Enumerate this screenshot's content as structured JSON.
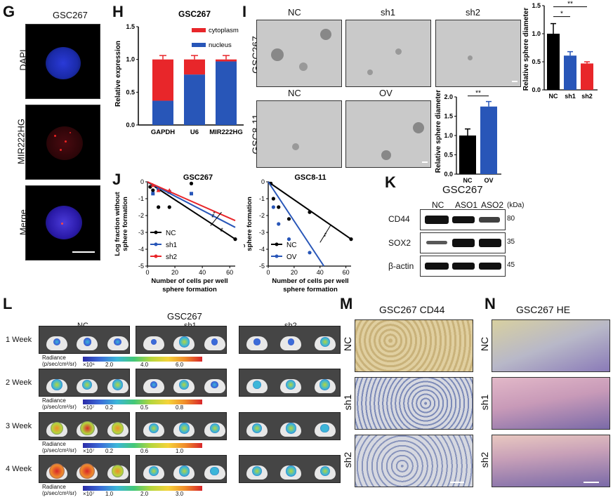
{
  "panels": {
    "G": {
      "label": "G",
      "title": "GSC267",
      "rows": [
        "DAPI",
        "MIR222HG",
        "Merge"
      ]
    },
    "H": {
      "label": "H",
      "chart_data": {
        "type": "bar",
        "title": "GSC267",
        "ylabel": "Relative expression",
        "categories": [
          "GAPDH",
          "U6",
          "MIR222HG"
        ],
        "series": [
          {
            "name": "nucleus",
            "values": [
              0.37,
              0.77,
              0.97
            ]
          },
          {
            "name": "cytoplasm",
            "values": [
              0.63,
              0.23,
              0.03
            ]
          }
        ],
        "yticks": [
          "0.0",
          "0.5",
          "1.0",
          "1.5"
        ],
        "ylim": [
          0,
          1.5
        ],
        "colors": {
          "cytoplasm": "#e8262a",
          "nucleus": "#2856b8"
        },
        "legend": "top-right"
      }
    },
    "I": {
      "label": "I",
      "row1_label": "GSC267",
      "row2_label": "GSC8-11",
      "row1_cols": [
        "NC",
        "sh1",
        "sh2"
      ],
      "row2_cols": [
        "NC",
        "OV"
      ],
      "chart_data": [
        {
          "type": "bar",
          "ylabel": "Relative sphere diameter",
          "categories": [
            "NC",
            "sh1",
            "sh2"
          ],
          "values": [
            1.0,
            0.61,
            0.47
          ],
          "errors": [
            0.18,
            0.07,
            0.03
          ],
          "yticks": [
            "0.0",
            "0.5",
            "1.0",
            "1.5"
          ],
          "ylim": [
            0,
            1.5
          ],
          "colors": [
            "#000000",
            "#2856b8",
            "#e8262a"
          ],
          "sig": [
            "*",
            "**"
          ]
        },
        {
          "type": "bar",
          "ylabel": "Relative sphere diameter",
          "categories": [
            "NC",
            "OV"
          ],
          "values": [
            1.0,
            1.75
          ],
          "errors": [
            0.17,
            0.13
          ],
          "yticks": [
            "0.0",
            "0.5",
            "1.0",
            "1.5",
            "2.0"
          ],
          "ylim": [
            0,
            2.0
          ],
          "colors": [
            "#000000",
            "#2856b8"
          ],
          "sig": [
            "**"
          ]
        }
      ]
    },
    "J": {
      "label": "J",
      "chart_data": [
        {
          "type": "line",
          "title": "GSC267",
          "ylabel": "Log fraction without sphere formation",
          "xlabel": "Number of cells per well sphere formation",
          "xticks": [
            "0",
            "20",
            "40",
            "60"
          ],
          "yticks": [
            "0",
            "-1",
            "-2",
            "-3",
            "-4",
            "-5"
          ],
          "xlim": [
            0,
            64
          ],
          "ylim": [
            -5,
            0
          ],
          "series": [
            {
              "name": "NC",
              "color": "#000000",
              "line": [
                [
                  0,
                  0
                ],
                [
                  64,
                  -3.4
                ]
              ],
              "points": [
                [
                  2,
                  -0.3
                ],
                [
                  4,
                  -0.5
                ],
                [
                  8,
                  -1.5
                ],
                [
                  16,
                  -1.5
                ],
                [
                  32,
                  -0.1
                ],
                [
                  64,
                  -3.4
                ]
              ]
            },
            {
              "name": "sh1",
              "color": "#2856b8",
              "line": [
                [
                  0,
                  0
                ],
                [
                  64,
                  -2.7
                ]
              ],
              "points": [
                [
                  4,
                  -0.7
                ],
                [
                  8,
                  -0.4
                ],
                [
                  16,
                  -0.6
                ],
                [
                  32,
                  -0.7
                ]
              ]
            },
            {
              "name": "sh2",
              "color": "#e8262a",
              "line": [
                [
                  0,
                  0
                ],
                [
                  64,
                  -2.3
                ]
              ],
              "points": [
                [
                  4,
                  -0.2
                ],
                [
                  8,
                  -0.5
                ],
                [
                  16,
                  -0.5
                ]
              ]
            }
          ],
          "annotations": [
            "***",
            "**"
          ],
          "legend": "bottom-left"
        },
        {
          "type": "line",
          "title": "GSC8-11",
          "ylabel": "Log fraction without sphere formation",
          "xlabel": "Number of cells per well sphere formation",
          "xticks": [
            "0",
            "20",
            "40",
            "60"
          ],
          "yticks": [
            "0",
            "-1",
            "-2",
            "-3",
            "-4",
            "-5"
          ],
          "xlim": [
            0,
            64
          ],
          "ylim": [
            -5,
            0
          ],
          "series": [
            {
              "name": "NC",
              "color": "#000000",
              "line": [
                [
                  0,
                  0
                ],
                [
                  64,
                  -3.4
                ]
              ],
              "points": [
                [
                  2,
                  -0.1
                ],
                [
                  4,
                  -1.0
                ],
                [
                  8,
                  -1.5
                ],
                [
                  16,
                  -2.2
                ],
                [
                  32,
                  -1.8
                ],
                [
                  64,
                  -3.4
                ]
              ]
            },
            {
              "name": "OV",
              "color": "#2856b8",
              "line": [
                [
                  0,
                  0
                ],
                [
                  43,
                  -5.0
                ]
              ],
              "points": [
                [
                  4,
                  -1.5
                ],
                [
                  8,
                  -2.5
                ],
                [
                  16,
                  -3.4
                ],
                [
                  32,
                  -4.2
                ]
              ]
            }
          ],
          "annotations": [
            "**"
          ],
          "legend": "bottom-left"
        }
      ]
    },
    "K": {
      "label": "K",
      "title": "GSC267",
      "cols": [
        "NC",
        "ASO1",
        "ASO2"
      ],
      "unit": "(kDa)",
      "rows": [
        {
          "name": "CD44",
          "kda": "80"
        },
        {
          "name": "SOX2",
          "kda": "35"
        },
        {
          "name": "β-actin",
          "kda": "45"
        }
      ]
    },
    "L": {
      "label": "L",
      "title": "GSC267",
      "cols": [
        "NC",
        "sh1",
        "sh2"
      ],
      "weeks": [
        "1 Week",
        "2 Week",
        "3 Week",
        "4 Week"
      ],
      "radiance_label": "Radiance",
      "radiance_unit": "(p/sec/cm²/sr)",
      "scales": [
        {
          "mult": "×10⁶",
          "ticks": [
            "2.0",
            "4.0",
            "6.0"
          ]
        },
        {
          "mult": "×10⁷",
          "ticks": [
            "0.2",
            "0.5",
            "0.8"
          ]
        },
        {
          "mult": "×10⁷",
          "ticks": [
            "0.2",
            "0.6",
            "1.0"
          ]
        },
        {
          "mult": "×10⁷",
          "ticks": [
            "1.0",
            "2.0",
            "3.0"
          ]
        }
      ]
    },
    "M": {
      "label": "M",
      "title": "GSC267 CD44",
      "rows": [
        "NC",
        "sh1",
        "sh2"
      ]
    },
    "N": {
      "label": "N",
      "title": "GSC267 HE",
      "rows": [
        "NC",
        "sh1",
        "sh2"
      ]
    }
  }
}
